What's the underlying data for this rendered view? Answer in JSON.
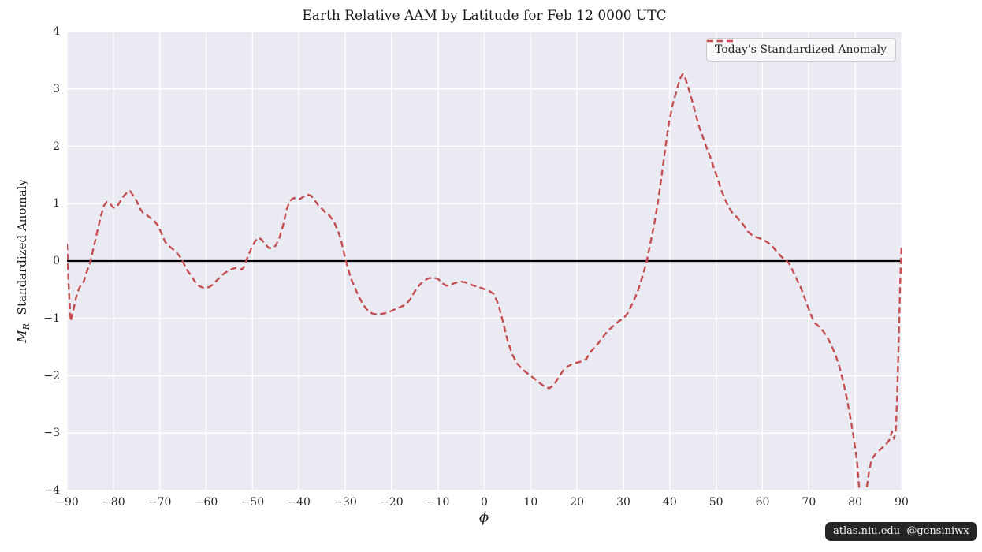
{
  "title": "Earth Relative AAM by Latitude for Feb 12 0000 UTC",
  "legend": {
    "label": "Today's Standardized Anomaly"
  },
  "watermark": "atlas.niu.edu  @gensiniwx",
  "axes": {
    "xlabel": "ϕ",
    "ylabel_var": "M",
    "ylabel_var_sub": "R",
    "ylabel_text": "Standardized Anomaly",
    "x_ticks": [
      -90,
      -80,
      -70,
      -60,
      -50,
      -40,
      -30,
      -20,
      -10,
      0,
      10,
      20,
      30,
      40,
      50,
      60,
      70,
      80,
      90
    ],
    "y_ticks": [
      -4,
      -3,
      -2,
      -1,
      0,
      1,
      2,
      3,
      4
    ]
  },
  "colors": {
    "curve": "#c44e52",
    "axes_bg": "#eaeaf2",
    "grid": "#ffffff",
    "zero_line": "#000000",
    "text": "#262626"
  },
  "chart_data": {
    "type": "line",
    "title": "Earth Relative AAM by Latitude for Feb 12 0000 UTC",
    "xlabel": "phi (latitude, degrees)",
    "ylabel": "M_R Standardized Anomaly",
    "xlim": [
      -90,
      90
    ],
    "ylim": [
      -4,
      4
    ],
    "grid": true,
    "legend_position": "upper right",
    "reference_line_y": 0,
    "series": [
      {
        "name": "Today's Standardized Anomaly",
        "color": "#c44e52",
        "linestyle": "dashed",
        "points": [
          [
            -90,
            0.3
          ],
          [
            -89.6,
            -0.5
          ],
          [
            -89.2,
            -1.05
          ],
          [
            -88.6,
            -0.85
          ],
          [
            -88,
            -0.62
          ],
          [
            -87.4,
            -0.48
          ],
          [
            -87,
            -0.42
          ],
          [
            -86.4,
            -0.36
          ],
          [
            -85.7,
            -0.18
          ],
          [
            -85,
            -0.03
          ],
          [
            -84.3,
            0.22
          ],
          [
            -83.5,
            0.5
          ],
          [
            -82.7,
            0.78
          ],
          [
            -82,
            0.97
          ],
          [
            -81.4,
            1.03
          ],
          [
            -80.7,
            1.0
          ],
          [
            -80,
            0.93
          ],
          [
            -79.3,
            0.94
          ],
          [
            -78.6,
            1.03
          ],
          [
            -77.8,
            1.13
          ],
          [
            -77,
            1.2
          ],
          [
            -76.4,
            1.22
          ],
          [
            -75.8,
            1.15
          ],
          [
            -75,
            1.05
          ],
          [
            -74.3,
            0.92
          ],
          [
            -73.6,
            0.84
          ],
          [
            -72.8,
            0.8
          ],
          [
            -72,
            0.75
          ],
          [
            -71.2,
            0.7
          ],
          [
            -70.4,
            0.62
          ],
          [
            -69.6,
            0.48
          ],
          [
            -68.8,
            0.33
          ],
          [
            -68,
            0.26
          ],
          [
            -67.2,
            0.21
          ],
          [
            -66.4,
            0.15
          ],
          [
            -65.6,
            0.07
          ],
          [
            -64.8,
            -0.05
          ],
          [
            -64,
            -0.17
          ],
          [
            -63.2,
            -0.26
          ],
          [
            -62.4,
            -0.36
          ],
          [
            -61.6,
            -0.43
          ],
          [
            -60.8,
            -0.46
          ],
          [
            -60,
            -0.47
          ],
          [
            -59.2,
            -0.45
          ],
          [
            -58.4,
            -0.4
          ],
          [
            -57.6,
            -0.33
          ],
          [
            -56.8,
            -0.27
          ],
          [
            -56,
            -0.21
          ],
          [
            -55.2,
            -0.17
          ],
          [
            -54.4,
            -0.14
          ],
          [
            -53.6,
            -0.12
          ],
          [
            -52.9,
            -0.13
          ],
          [
            -52.3,
            -0.15
          ],
          [
            -51.8,
            -0.1
          ],
          [
            -51,
            0.08
          ],
          [
            -50.2,
            0.23
          ],
          [
            -49.4,
            0.35
          ],
          [
            -48.7,
            0.41
          ],
          [
            -48,
            0.37
          ],
          [
            -47.2,
            0.29
          ],
          [
            -46.5,
            0.23
          ],
          [
            -45.8,
            0.22
          ],
          [
            -45,
            0.27
          ],
          [
            -44.2,
            0.4
          ],
          [
            -43.4,
            0.62
          ],
          [
            -42.7,
            0.88
          ],
          [
            -42,
            1.04
          ],
          [
            -41.3,
            1.09
          ],
          [
            -40.6,
            1.1
          ],
          [
            -39.8,
            1.08
          ],
          [
            -39,
            1.12
          ],
          [
            -38.2,
            1.16
          ],
          [
            -37.4,
            1.14
          ],
          [
            -36.6,
            1.06
          ],
          [
            -35.8,
            0.97
          ],
          [
            -35,
            0.91
          ],
          [
            -34.2,
            0.84
          ],
          [
            -33.4,
            0.79
          ],
          [
            -32.6,
            0.71
          ],
          [
            -31.8,
            0.57
          ],
          [
            -31,
            0.4
          ],
          [
            -30.2,
            0.12
          ],
          [
            -29.5,
            -0.1
          ],
          [
            -28.8,
            -0.3
          ],
          [
            -28,
            -0.45
          ],
          [
            -27.2,
            -0.6
          ],
          [
            -26.4,
            -0.72
          ],
          [
            -25.6,
            -0.82
          ],
          [
            -24.8,
            -0.89
          ],
          [
            -24,
            -0.92
          ],
          [
            -23,
            -0.93
          ],
          [
            -22,
            -0.92
          ],
          [
            -21,
            -0.9
          ],
          [
            -20,
            -0.87
          ],
          [
            -19,
            -0.83
          ],
          [
            -18,
            -0.8
          ],
          [
            -17,
            -0.76
          ],
          [
            -16,
            -0.67
          ],
          [
            -15,
            -0.53
          ],
          [
            -14,
            -0.42
          ],
          [
            -13,
            -0.34
          ],
          [
            -12,
            -0.3
          ],
          [
            -11,
            -0.29
          ],
          [
            -10,
            -0.31
          ],
          [
            -9,
            -0.39
          ],
          [
            -8.2,
            -0.43
          ],
          [
            -7.4,
            -0.42
          ],
          [
            -6.6,
            -0.39
          ],
          [
            -5.8,
            -0.37
          ],
          [
            -5,
            -0.36
          ],
          [
            -4.2,
            -0.37
          ],
          [
            -3.4,
            -0.39
          ],
          [
            -2.6,
            -0.42
          ],
          [
            -1.8,
            -0.44
          ],
          [
            -1,
            -0.46
          ],
          [
            0,
            -0.49
          ],
          [
            1,
            -0.52
          ],
          [
            2,
            -0.57
          ],
          [
            3,
            -0.75
          ],
          [
            4,
            -1.05
          ],
          [
            5,
            -1.38
          ],
          [
            6,
            -1.62
          ],
          [
            7,
            -1.78
          ],
          [
            8,
            -1.87
          ],
          [
            9,
            -1.94
          ],
          [
            10,
            -2.0
          ],
          [
            11,
            -2.06
          ],
          [
            12,
            -2.13
          ],
          [
            13,
            -2.19
          ],
          [
            14,
            -2.22
          ],
          [
            15,
            -2.16
          ],
          [
            16,
            -2.03
          ],
          [
            17,
            -1.91
          ],
          [
            18,
            -1.84
          ],
          [
            19,
            -1.79
          ],
          [
            20,
            -1.77
          ],
          [
            21,
            -1.75
          ],
          [
            22,
            -1.71
          ],
          [
            22.7,
            -1.6
          ],
          [
            23.4,
            -1.54
          ],
          [
            24.2,
            -1.47
          ],
          [
            25,
            -1.39
          ],
          [
            26,
            -1.28
          ],
          [
            27,
            -1.19
          ],
          [
            28,
            -1.12
          ],
          [
            29,
            -1.05
          ],
          [
            30,
            -1.0
          ],
          [
            31,
            -0.9
          ],
          [
            32,
            -0.73
          ],
          [
            33,
            -0.55
          ],
          [
            34,
            -0.3
          ],
          [
            35,
            -0.02
          ],
          [
            35.8,
            0.3
          ],
          [
            36.6,
            0.62
          ],
          [
            37.4,
            1.0
          ],
          [
            38.2,
            1.45
          ],
          [
            39,
            1.95
          ],
          [
            39.8,
            2.4
          ],
          [
            40.6,
            2.72
          ],
          [
            41.4,
            2.95
          ],
          [
            42.2,
            3.18
          ],
          [
            42.8,
            3.26
          ],
          [
            43.4,
            3.18
          ],
          [
            44,
            3.02
          ],
          [
            44.8,
            2.8
          ],
          [
            45.6,
            2.55
          ],
          [
            46.4,
            2.33
          ],
          [
            47.2,
            2.15
          ],
          [
            48,
            1.96
          ],
          [
            48.8,
            1.8
          ],
          [
            49.6,
            1.6
          ],
          [
            50.4,
            1.42
          ],
          [
            51.2,
            1.22
          ],
          [
            52,
            1.06
          ],
          [
            52.8,
            0.93
          ],
          [
            53.6,
            0.83
          ],
          [
            54.4,
            0.77
          ],
          [
            55.2,
            0.69
          ],
          [
            56,
            0.62
          ],
          [
            56.8,
            0.52
          ],
          [
            57.6,
            0.46
          ],
          [
            58.4,
            0.42
          ],
          [
            59.2,
            0.4
          ],
          [
            60,
            0.38
          ],
          [
            61,
            0.33
          ],
          [
            62,
            0.27
          ],
          [
            63,
            0.17
          ],
          [
            64,
            0.08
          ],
          [
            65,
            0.02
          ],
          [
            65.8,
            -0.05
          ],
          [
            66.6,
            -0.18
          ],
          [
            67.4,
            -0.32
          ],
          [
            68.2,
            -0.45
          ],
          [
            69,
            -0.62
          ],
          [
            69.8,
            -0.8
          ],
          [
            70.6,
            -0.97
          ],
          [
            71.3,
            -1.08
          ],
          [
            72,
            -1.13
          ],
          [
            72.7,
            -1.18
          ],
          [
            73.4,
            -1.26
          ],
          [
            74.2,
            -1.36
          ],
          [
            75,
            -1.5
          ],
          [
            75.8,
            -1.65
          ],
          [
            76.6,
            -1.85
          ],
          [
            77.4,
            -2.1
          ],
          [
            78.2,
            -2.4
          ],
          [
            79,
            -2.75
          ],
          [
            79.8,
            -3.15
          ],
          [
            80.4,
            -3.5
          ],
          [
            81,
            -4.1
          ],
          [
            81.5,
            -4.4
          ],
          [
            82,
            -4.3
          ],
          [
            82.5,
            -3.95
          ],
          [
            83,
            -3.65
          ],
          [
            83.6,
            -3.45
          ],
          [
            84.4,
            -3.36
          ],
          [
            85.2,
            -3.3
          ],
          [
            86,
            -3.24
          ],
          [
            86.8,
            -3.18
          ],
          [
            87.5,
            -3.1
          ],
          [
            87.9,
            -2.97
          ],
          [
            88.4,
            -3.1
          ],
          [
            88.8,
            -2.9
          ],
          [
            89.1,
            -2.2
          ],
          [
            89.4,
            -1.3
          ],
          [
            89.7,
            -0.4
          ],
          [
            90,
            0.27
          ]
        ]
      }
    ]
  }
}
